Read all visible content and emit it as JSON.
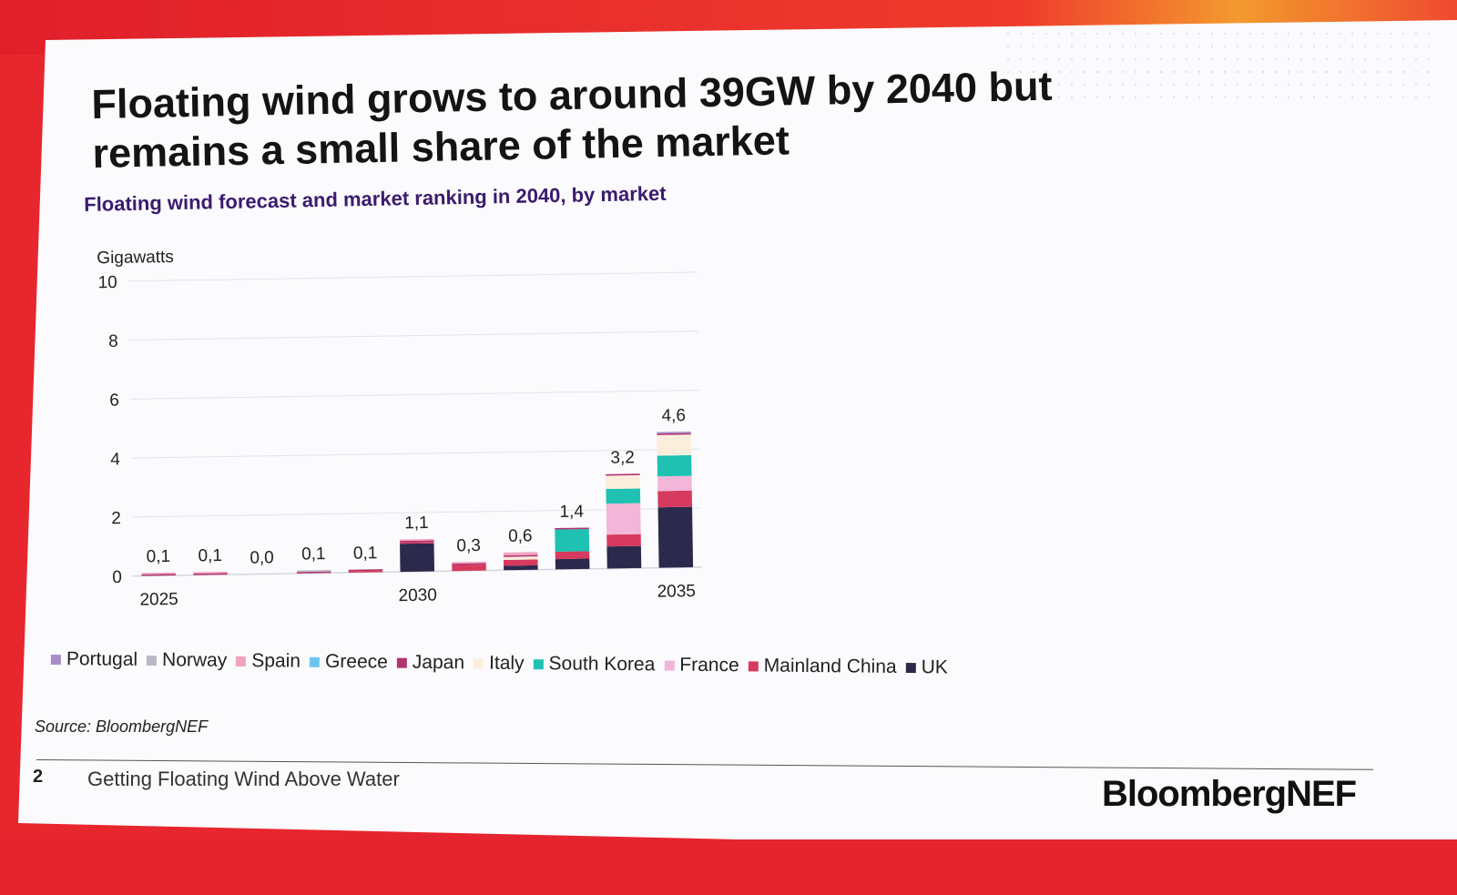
{
  "slide": {
    "title": "Floating wind grows to around 39GW by 2040 but remains a small share of the market",
    "subtitle": "Floating wind forecast and market ranking in 2040, by market",
    "source": "Source: BloombergNEF",
    "page_number": "2",
    "footer_text": "Getting Floating Wind Above Water",
    "brand": "BloombergNEF"
  },
  "chart_data": {
    "type": "bar",
    "stacked": true,
    "title": "",
    "ylabel": "Gigawatts",
    "xlabel": "",
    "ylim": [
      0,
      10
    ],
    "y_ticks": [
      "0",
      "2",
      "4",
      "6",
      "8",
      "10"
    ],
    "x": [
      2025,
      2026,
      2027,
      2028,
      2029,
      2030,
      2031,
      2032,
      2033,
      2034,
      2035
    ],
    "x_tick_labels": [
      "2025",
      "",
      "",
      "",
      "",
      "2030",
      "",
      "",
      "",
      "",
      "2035"
    ],
    "totals": [
      0.1,
      0.1,
      0.0,
      0.1,
      0.1,
      1.1,
      0.3,
      0.6,
      1.4,
      3.2,
      4.6
    ],
    "total_labels": [
      "0,1",
      "0,1",
      "0,0",
      "0,1",
      "0,1",
      "1,1",
      "0,3",
      "0,6",
      "1,4",
      "3,2",
      "4,6"
    ],
    "grid": true,
    "legend_position": "bottom",
    "series": [
      {
        "name": "UK",
        "color": "#2b2a4c",
        "values": [
          0.0,
          0.0,
          0.0,
          0.0,
          0.0,
          0.95,
          0.0,
          0.15,
          0.35,
          0.75,
          2.05
        ]
      },
      {
        "name": "Mainland China",
        "color": "#d63a5e",
        "values": [
          0.0,
          0.0,
          0.0,
          0.0,
          0.05,
          0.05,
          0.2,
          0.2,
          0.25,
          0.4,
          0.55
        ]
      },
      {
        "name": "France",
        "color": "#f2b6d8",
        "values": [
          0.0,
          0.0,
          0.0,
          0.0,
          0.0,
          0.0,
          0.0,
          0.0,
          0.0,
          1.05,
          0.5
        ]
      },
      {
        "name": "South Korea",
        "color": "#1fc1b2",
        "values": [
          0.0,
          0.0,
          0.0,
          0.0,
          0.0,
          0.0,
          0.0,
          0.0,
          0.75,
          0.5,
          0.7
        ]
      },
      {
        "name": "Italy",
        "color": "#fbeedd",
        "values": [
          0.0,
          0.0,
          0.0,
          0.0,
          0.0,
          0.0,
          0.0,
          0.1,
          0.0,
          0.45,
          0.7
        ]
      },
      {
        "name": "Japan",
        "color": "#b3336e",
        "values": [
          0.05,
          0.05,
          0.0,
          0.05,
          0.05,
          0.05,
          0.05,
          0.05,
          0.05,
          0.05,
          0.05
        ]
      },
      {
        "name": "Greece",
        "color": "#6ec6f0",
        "values": [
          0.0,
          0.0,
          0.0,
          0.0,
          0.0,
          0.0,
          0.0,
          0.0,
          0.0,
          0.0,
          0.0
        ]
      },
      {
        "name": "Spain",
        "color": "#f2a3c0",
        "values": [
          0.05,
          0.05,
          0.0,
          0.0,
          0.0,
          0.05,
          0.05,
          0.1,
          0.0,
          0.0,
          0.0
        ]
      },
      {
        "name": "Norway",
        "color": "#b9b9c6",
        "values": [
          0.0,
          0.0,
          0.0,
          0.05,
          0.0,
          0.0,
          0.0,
          0.0,
          0.0,
          0.0,
          0.0
        ]
      },
      {
        "name": "Portugal",
        "color": "#a98cc8",
        "values": [
          0.0,
          0.0,
          0.0,
          0.0,
          0.0,
          0.0,
          0.0,
          0.0,
          0.0,
          0.0,
          0.05
        ]
      }
    ],
    "legend_order": [
      "Portugal",
      "Norway",
      "Spain",
      "Greece",
      "Japan",
      "Italy",
      "South Korea",
      "France",
      "Mainland China",
      "UK"
    ]
  }
}
